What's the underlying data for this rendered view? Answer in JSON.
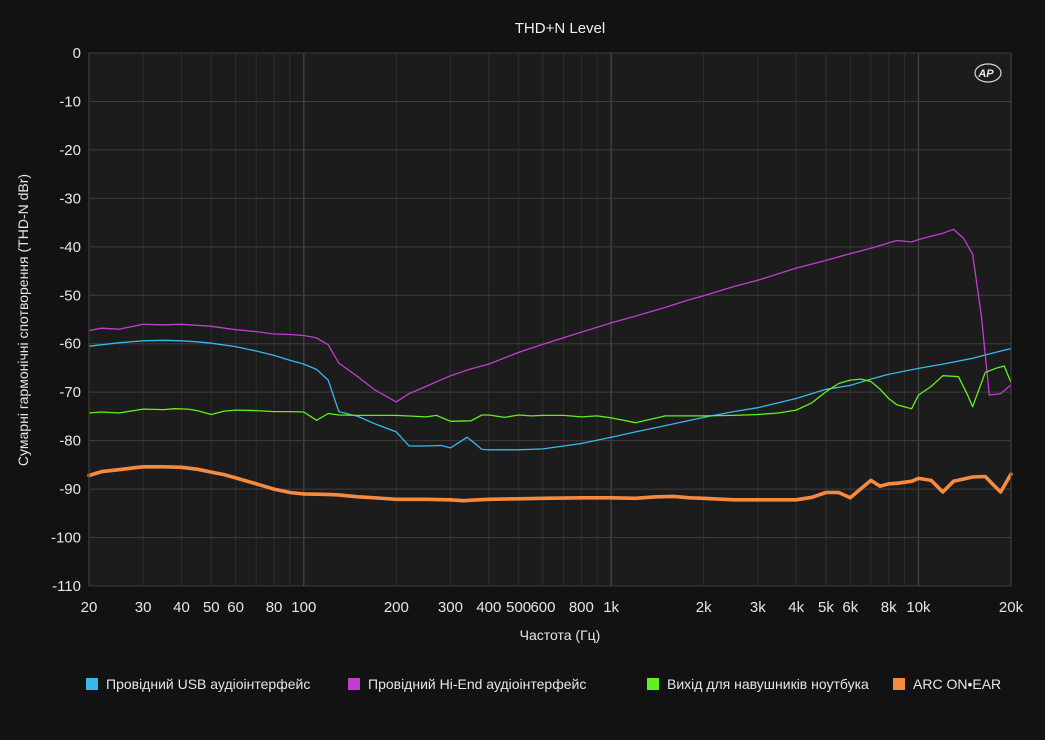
{
  "chart_data": {
    "type": "line",
    "title": "THD+N Level",
    "xlabel": "Частота (Гц)",
    "ylabel": "Сумарні гармонічні спотворення (THD-N dBr)",
    "x_scale": "log",
    "xlim": [
      20,
      20000
    ],
    "ylim": [
      -110,
      0
    ],
    "grid": true,
    "legend_position": "bottom",
    "logo": "AP",
    "x_ticks": [
      {
        "value": 20,
        "label": "20"
      },
      {
        "value": 30,
        "label": "30"
      },
      {
        "value": 40,
        "label": "40"
      },
      {
        "value": 50,
        "label": "50"
      },
      {
        "value": 60,
        "label": "60"
      },
      {
        "value": 80,
        "label": "80"
      },
      {
        "value": 100,
        "label": "100"
      },
      {
        "value": 200,
        "label": "200"
      },
      {
        "value": 300,
        "label": "300"
      },
      {
        "value": 400,
        "label": "400"
      },
      {
        "value": 500,
        "label": "500"
      },
      {
        "value": 600,
        "label": "600"
      },
      {
        "value": 800,
        "label": "800"
      },
      {
        "value": 1000,
        "label": "1k"
      },
      {
        "value": 2000,
        "label": "2k"
      },
      {
        "value": 3000,
        "label": "3k"
      },
      {
        "value": 4000,
        "label": "4k"
      },
      {
        "value": 5000,
        "label": "5k"
      },
      {
        "value": 6000,
        "label": "6k"
      },
      {
        "value": 8000,
        "label": "8k"
      },
      {
        "value": 10000,
        "label": "10k"
      },
      {
        "value": 20000,
        "label": "20k"
      }
    ],
    "y_ticks": [
      {
        "value": 0,
        "label": "0"
      },
      {
        "value": -10,
        "label": "-10"
      },
      {
        "value": -20,
        "label": "-20"
      },
      {
        "value": -30,
        "label": "-30"
      },
      {
        "value": -40,
        "label": "-40"
      },
      {
        "value": -50,
        "label": "-50"
      },
      {
        "value": -60,
        "label": "-60"
      },
      {
        "value": -70,
        "label": "-70"
      },
      {
        "value": -80,
        "label": "-80"
      },
      {
        "value": -90,
        "label": "-90"
      },
      {
        "value": -100,
        "label": "-100"
      },
      {
        "value": -110,
        "label": "-110"
      }
    ],
    "series": [
      {
        "name": "Провідний USB аудіоінтерфейс",
        "color": "#36b9ea",
        "width": 1.3,
        "points": [
          [
            20,
            -60.5
          ],
          [
            25,
            -59.8
          ],
          [
            30,
            -59.4
          ],
          [
            35,
            -59.3
          ],
          [
            40,
            -59.4
          ],
          [
            45,
            -59.6
          ],
          [
            50,
            -59.9
          ],
          [
            60,
            -60.6
          ],
          [
            70,
            -61.5
          ],
          [
            80,
            -62.4
          ],
          [
            90,
            -63.4
          ],
          [
            100,
            -64.2
          ],
          [
            110,
            -65.3
          ],
          [
            120,
            -67.5
          ],
          [
            130,
            -74
          ],
          [
            150,
            -75
          ],
          [
            170,
            -76.5
          ],
          [
            200,
            -78.2
          ],
          [
            220,
            -81.1
          ],
          [
            250,
            -81.1
          ],
          [
            280,
            -81
          ],
          [
            300,
            -81.5
          ],
          [
            340,
            -79.3
          ],
          [
            380,
            -81.8
          ],
          [
            400,
            -81.9
          ],
          [
            500,
            -81.9
          ],
          [
            600,
            -81.7
          ],
          [
            800,
            -80.6
          ],
          [
            1000,
            -79.3
          ],
          [
            1200,
            -78.2
          ],
          [
            1500,
            -76.9
          ],
          [
            2000,
            -75.2
          ],
          [
            2500,
            -74
          ],
          [
            3000,
            -73.2
          ],
          [
            4000,
            -71.3
          ],
          [
            5000,
            -69.4
          ],
          [
            5500,
            -69
          ],
          [
            6000,
            -68.6
          ],
          [
            7000,
            -67.3
          ],
          [
            8000,
            -66.3
          ],
          [
            10000,
            -65.1
          ],
          [
            12000,
            -64.2
          ],
          [
            15000,
            -63
          ],
          [
            18000,
            -61.7
          ],
          [
            20000,
            -61
          ]
        ]
      },
      {
        "name": "Провідний Hi-End аудіоінтерфейс",
        "color": "#c13dd1",
        "width": 1.3,
        "points": [
          [
            20,
            -57.3
          ],
          [
            22,
            -56.8
          ],
          [
            25,
            -57
          ],
          [
            30,
            -56
          ],
          [
            35,
            -56.1
          ],
          [
            40,
            -56
          ],
          [
            45,
            -56.2
          ],
          [
            50,
            -56.4
          ],
          [
            60,
            -57.1
          ],
          [
            70,
            -57.5
          ],
          [
            80,
            -58
          ],
          [
            90,
            -58.1
          ],
          [
            100,
            -58.3
          ],
          [
            110,
            -58.8
          ],
          [
            120,
            -60.2
          ],
          [
            130,
            -64
          ],
          [
            150,
            -66.8
          ],
          [
            170,
            -69.5
          ],
          [
            200,
            -72
          ],
          [
            220,
            -70.3
          ],
          [
            250,
            -68.8
          ],
          [
            300,
            -66.6
          ],
          [
            350,
            -65.2
          ],
          [
            400,
            -64.2
          ],
          [
            500,
            -61.8
          ],
          [
            600,
            -60.1
          ],
          [
            800,
            -57.6
          ],
          [
            1000,
            -55.7
          ],
          [
            1200,
            -54.3
          ],
          [
            1500,
            -52.5
          ],
          [
            1800,
            -50.9
          ],
          [
            2000,
            -50.1
          ],
          [
            2500,
            -48.2
          ],
          [
            3000,
            -46.9
          ],
          [
            4000,
            -44.4
          ],
          [
            5000,
            -42.8
          ],
          [
            6000,
            -41.4
          ],
          [
            7000,
            -40.3
          ],
          [
            8000,
            -39.2
          ],
          [
            8500,
            -38.7
          ],
          [
            9500,
            -39
          ],
          [
            10000,
            -38.5
          ],
          [
            12000,
            -37.2
          ],
          [
            13000,
            -36.4
          ],
          [
            14000,
            -38.2
          ],
          [
            15000,
            -41.5
          ],
          [
            16000,
            -54
          ],
          [
            17000,
            -70.6
          ],
          [
            18500,
            -70.3
          ],
          [
            20000,
            -68.5
          ]
        ]
      },
      {
        "name": "Вихід для навушників ноутбука",
        "color": "#62f01e",
        "width": 1.3,
        "points": [
          [
            20,
            -74.3
          ],
          [
            22,
            -74.1
          ],
          [
            25,
            -74.3
          ],
          [
            28,
            -73.8
          ],
          [
            30,
            -73.5
          ],
          [
            35,
            -73.6
          ],
          [
            38,
            -73.4
          ],
          [
            42,
            -73.5
          ],
          [
            45,
            -73.8
          ],
          [
            50,
            -74.6
          ],
          [
            55,
            -73.9
          ],
          [
            60,
            -73.7
          ],
          [
            70,
            -73.8
          ],
          [
            80,
            -74
          ],
          [
            90,
            -74
          ],
          [
            100,
            -74.1
          ],
          [
            110,
            -75.8
          ],
          [
            120,
            -74.4
          ],
          [
            130,
            -74.7
          ],
          [
            150,
            -74.8
          ],
          [
            200,
            -74.8
          ],
          [
            250,
            -75.1
          ],
          [
            270,
            -74.8
          ],
          [
            300,
            -76
          ],
          [
            350,
            -75.9
          ],
          [
            380,
            -74.7
          ],
          [
            400,
            -74.7
          ],
          [
            450,
            -75.2
          ],
          [
            500,
            -74.7
          ],
          [
            550,
            -74.9
          ],
          [
            600,
            -74.8
          ],
          [
            700,
            -74.8
          ],
          [
            800,
            -75.1
          ],
          [
            900,
            -74.9
          ],
          [
            1000,
            -75.3
          ],
          [
            1200,
            -76.3
          ],
          [
            1500,
            -74.9
          ],
          [
            2000,
            -74.9
          ],
          [
            2500,
            -74.8
          ],
          [
            3000,
            -74.6
          ],
          [
            3500,
            -74.3
          ],
          [
            4000,
            -73.7
          ],
          [
            4500,
            -72.2
          ],
          [
            5000,
            -69.9
          ],
          [
            5500,
            -68.2
          ],
          [
            6000,
            -67.5
          ],
          [
            6500,
            -67.3
          ],
          [
            7000,
            -67.8
          ],
          [
            7500,
            -69.4
          ],
          [
            8000,
            -71.3
          ],
          [
            8500,
            -72.6
          ],
          [
            9500,
            -73.4
          ],
          [
            10000,
            -70.6
          ],
          [
            11000,
            -68.8
          ],
          [
            12000,
            -66.6
          ],
          [
            13500,
            -66.8
          ],
          [
            14500,
            -70.8
          ],
          [
            15000,
            -73
          ],
          [
            16000,
            -68.2
          ],
          [
            16500,
            -65.9
          ],
          [
            18000,
            -65
          ],
          [
            19000,
            -64.6
          ],
          [
            20000,
            -68
          ]
        ]
      },
      {
        "name": "ARC ON•EAR",
        "color": "#f58b3e",
        "width": 3.6,
        "points": [
          [
            20,
            -87.2
          ],
          [
            22,
            -86.4
          ],
          [
            25,
            -86
          ],
          [
            28,
            -85.6
          ],
          [
            30,
            -85.4
          ],
          [
            35,
            -85.4
          ],
          [
            40,
            -85.5
          ],
          [
            45,
            -85.9
          ],
          [
            50,
            -86.5
          ],
          [
            55,
            -87
          ],
          [
            60,
            -87.7
          ],
          [
            70,
            -88.9
          ],
          [
            80,
            -90
          ],
          [
            90,
            -90.7
          ],
          [
            100,
            -91
          ],
          [
            120,
            -91.1
          ],
          [
            130,
            -91.2
          ],
          [
            150,
            -91.6
          ],
          [
            170,
            -91.8
          ],
          [
            200,
            -92.1
          ],
          [
            250,
            -92.1
          ],
          [
            300,
            -92.2
          ],
          [
            330,
            -92.4
          ],
          [
            350,
            -92.3
          ],
          [
            400,
            -92.1
          ],
          [
            500,
            -92
          ],
          [
            600,
            -91.9
          ],
          [
            800,
            -91.8
          ],
          [
            1000,
            -91.8
          ],
          [
            1200,
            -91.9
          ],
          [
            1400,
            -91.6
          ],
          [
            1600,
            -91.5
          ],
          [
            1800,
            -91.8
          ],
          [
            2000,
            -91.9
          ],
          [
            2500,
            -92.2
          ],
          [
            3000,
            -92.2
          ],
          [
            4000,
            -92.2
          ],
          [
            4500,
            -91.7
          ],
          [
            5000,
            -90.7
          ],
          [
            5500,
            -90.7
          ],
          [
            6000,
            -91.8
          ],
          [
            6500,
            -89.9
          ],
          [
            7000,
            -88.2
          ],
          [
            7500,
            -89.4
          ],
          [
            8000,
            -88.9
          ],
          [
            8500,
            -88.8
          ],
          [
            9500,
            -88.4
          ],
          [
            10000,
            -87.8
          ],
          [
            11000,
            -88.2
          ],
          [
            12000,
            -90.6
          ],
          [
            13000,
            -88.4
          ],
          [
            15000,
            -87.5
          ],
          [
            16500,
            -87.4
          ],
          [
            17500,
            -89.1
          ],
          [
            18500,
            -90.6
          ],
          [
            20000,
            -86.9
          ]
        ]
      }
    ]
  }
}
